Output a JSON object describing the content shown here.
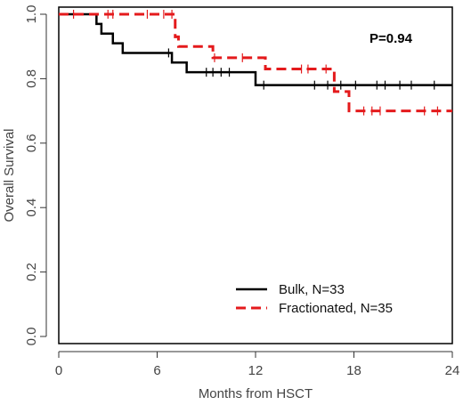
{
  "chart_data": {
    "type": "line",
    "title": "",
    "xlabel": "Months from HSCT",
    "ylabel": "Overall Survival",
    "xlim": [
      0,
      24
    ],
    "ylim": [
      0,
      1
    ],
    "xticks": [
      "0",
      "6",
      "12",
      "18",
      "24"
    ],
    "yticks": [
      "0.0",
      "0.2",
      "0.4",
      "0.6",
      "0.8",
      "1.0"
    ],
    "grid": false,
    "legend_position": "bottom-right",
    "annotation": "P=0.94",
    "series": [
      {
        "name": "Bulk, N=33",
        "color": "#000000",
        "dash": "solid",
        "steps": [
          [
            0,
            1.0
          ],
          [
            2.3,
            0.97
          ],
          [
            2.6,
            0.94
          ],
          [
            3.3,
            0.91
          ],
          [
            3.9,
            0.88
          ],
          [
            6.9,
            0.85
          ],
          [
            7.8,
            0.82
          ],
          [
            12.0,
            0.78
          ],
          [
            24,
            0.78
          ]
        ],
        "censor_times": [
          6.7,
          9.0,
          9.4,
          9.9,
          10.4,
          12.5,
          15.6,
          16.4,
          17.2,
          18.1,
          19.4,
          19.9,
          20.8,
          21.5,
          22.9
        ]
      },
      {
        "name": "Fractionated, N=35",
        "color": "#e41a1c",
        "dash": "dashed",
        "steps": [
          [
            0,
            1.0
          ],
          [
            7.1,
            0.93
          ],
          [
            7.3,
            0.9
          ],
          [
            9.4,
            0.865
          ],
          [
            12.6,
            0.83
          ],
          [
            16.8,
            0.76
          ],
          [
            17.7,
            0.7
          ],
          [
            24,
            0.7
          ]
        ],
        "censor_times": [
          0.9,
          3.0,
          3.3,
          5.4,
          6.4,
          6.9,
          9.5,
          11.2,
          14.8,
          15.2,
          16.3,
          18.6,
          19.1,
          19.6,
          22.3,
          23.1
        ]
      }
    ]
  }
}
